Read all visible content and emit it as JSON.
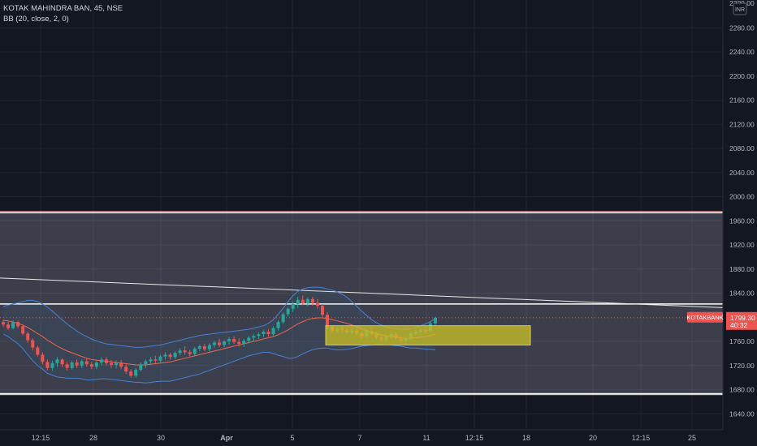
{
  "symbol_line": "KOTAK MAHINDRA BAN, 45, NSE",
  "indicator_line": "BB (20, close, 2, 0)",
  "currency_badge": "INR",
  "price_axis": {
    "top_partial_label": "2320.00",
    "ticks": [
      "2280.00",
      "2240.00",
      "2200.00",
      "2160.00",
      "2120.00",
      "2080.00",
      "2040.00",
      "2000.00",
      "1960.00",
      "1920.00",
      "1880.00",
      "1840.00",
      "1760.00",
      "1720.00",
      "1680.00",
      "1640.00"
    ],
    "last_price": "1799.30",
    "countdown": "40:32",
    "symbol_tag": "KOTAKBANK"
  },
  "time_axis": {
    "ticks": [
      "12:15",
      "28",
      "30",
      "Apr",
      "5",
      "7",
      "11",
      "12:15",
      "18",
      "20",
      "12:15",
      "25"
    ],
    "bold_index": 3
  },
  "colors": {
    "background": "#131722",
    "grid": "#1f2330",
    "up": "#26a69a",
    "down": "#ef5350",
    "bb_basis": "#f0674a",
    "bb_band": "#4a7fd4",
    "zone_fill": "rgba(210,210,225,0.22)",
    "yellow_box": "rgba(200,190,40,0.78)",
    "axis_text": "#b2b5be",
    "last_price_bg": "#ef5350"
  },
  "chart_data": {
    "type": "candlestick",
    "title": "KOTAK MAHINDRA BAN, 45, NSE",
    "interval": "45",
    "exchange": "NSE",
    "y_range": [
      1620,
      2322
    ],
    "x_range_hours": [
      0,
      706
    ],
    "last_price": 1799.3,
    "indicators": [
      {
        "name": "BB (20, close, 2, 0)",
        "bands": [
          "upper",
          "basis",
          "lower"
        ]
      }
    ],
    "annotations": [
      {
        "kind": "price_zone",
        "top": 1975,
        "bottom": 1670
      },
      {
        "kind": "horizontal_line",
        "price": 1822
      },
      {
        "kind": "horizontal_line",
        "price": 1673
      },
      {
        "kind": "trend_line",
        "from_price": 1865,
        "to_price": 1816
      },
      {
        "kind": "rectangle",
        "top": 1786,
        "bottom": 1754
      },
      {
        "kind": "dotted_line",
        "price": 1799.3
      }
    ],
    "ohlc": [
      [
        1792,
        1796,
        1784,
        1788
      ],
      [
        1788,
        1793,
        1779,
        1782
      ],
      [
        1782,
        1795,
        1780,
        1792
      ],
      [
        1792,
        1794,
        1782,
        1785
      ],
      [
        1785,
        1788,
        1770,
        1773
      ],
      [
        1773,
        1776,
        1758,
        1762
      ],
      [
        1762,
        1765,
        1745,
        1750
      ],
      [
        1750,
        1753,
        1735,
        1738
      ],
      [
        1738,
        1742,
        1722,
        1726
      ],
      [
        1726,
        1730,
        1712,
        1716
      ],
      [
        1716,
        1728,
        1711,
        1724
      ],
      [
        1724,
        1734,
        1718,
        1730
      ],
      [
        1730,
        1732,
        1718,
        1722
      ],
      [
        1722,
        1726,
        1712,
        1716
      ],
      [
        1716,
        1728,
        1713,
        1725
      ],
      [
        1725,
        1730,
        1716,
        1720
      ],
      [
        1720,
        1730,
        1716,
        1727
      ],
      [
        1727,
        1732,
        1718,
        1722
      ],
      [
        1722,
        1726,
        1714,
        1718
      ],
      [
        1718,
        1728,
        1714,
        1725
      ],
      [
        1725,
        1734,
        1720,
        1730
      ],
      [
        1730,
        1734,
        1720,
        1724
      ],
      [
        1724,
        1729,
        1716,
        1721
      ],
      [
        1721,
        1728,
        1715,
        1725
      ],
      [
        1725,
        1729,
        1714,
        1718
      ],
      [
        1718,
        1722,
        1706,
        1710
      ],
      [
        1710,
        1714,
        1700,
        1703
      ],
      [
        1703,
        1716,
        1700,
        1713
      ],
      [
        1713,
        1725,
        1710,
        1722
      ],
      [
        1722,
        1730,
        1716,
        1727
      ],
      [
        1727,
        1734,
        1722,
        1730
      ],
      [
        1730,
        1736,
        1724,
        1728
      ],
      [
        1728,
        1738,
        1724,
        1735
      ],
      [
        1735,
        1742,
        1730,
        1738
      ],
      [
        1738,
        1741,
        1730,
        1734
      ],
      [
        1734,
        1744,
        1730,
        1741
      ],
      [
        1741,
        1749,
        1737,
        1745
      ],
      [
        1745,
        1752,
        1738,
        1742
      ],
      [
        1742,
        1746,
        1735,
        1739
      ],
      [
        1739,
        1751,
        1736,
        1748
      ],
      [
        1748,
        1755,
        1744,
        1752
      ],
      [
        1752,
        1756,
        1744,
        1747
      ],
      [
        1747,
        1757,
        1742,
        1754
      ],
      [
        1754,
        1761,
        1749,
        1758
      ],
      [
        1758,
        1764,
        1751,
        1754
      ],
      [
        1754,
        1762,
        1750,
        1760
      ],
      [
        1760,
        1767,
        1755,
        1764
      ],
      [
        1764,
        1768,
        1756,
        1759
      ],
      [
        1759,
        1765,
        1752,
        1756
      ],
      [
        1756,
        1764,
        1751,
        1761
      ],
      [
        1761,
        1769,
        1757,
        1766
      ],
      [
        1766,
        1772,
        1761,
        1769
      ],
      [
        1769,
        1775,
        1764,
        1772
      ],
      [
        1772,
        1779,
        1767,
        1776
      ],
      [
        1776,
        1780,
        1768,
        1772
      ],
      [
        1772,
        1785,
        1769,
        1782
      ],
      [
        1782,
        1795,
        1778,
        1792
      ],
      [
        1792,
        1808,
        1789,
        1805
      ],
      [
        1805,
        1817,
        1801,
        1814
      ],
      [
        1814,
        1826,
        1809,
        1822
      ],
      [
        1822,
        1834,
        1816,
        1829
      ],
      [
        1829,
        1836,
        1820,
        1823
      ],
      [
        1823,
        1833,
        1818,
        1830
      ],
      [
        1830,
        1834,
        1819,
        1824
      ],
      [
        1824,
        1830,
        1814,
        1819
      ],
      [
        1819,
        1822,
        1800,
        1804
      ],
      [
        1804,
        1808,
        1780,
        1784
      ],
      [
        1784,
        1787,
        1773,
        1777
      ],
      [
        1777,
        1784,
        1774,
        1781
      ],
      [
        1781,
        1786,
        1775,
        1779
      ],
      [
        1779,
        1783,
        1772,
        1775
      ],
      [
        1775,
        1781,
        1771,
        1778
      ],
      [
        1778,
        1782,
        1770,
        1773
      ],
      [
        1773,
        1777,
        1764,
        1768
      ],
      [
        1768,
        1780,
        1765,
        1777
      ],
      [
        1777,
        1782,
        1769,
        1772
      ],
      [
        1772,
        1776,
        1764,
        1767
      ],
      [
        1767,
        1772,
        1759,
        1763
      ],
      [
        1763,
        1771,
        1759,
        1768
      ],
      [
        1768,
        1776,
        1764,
        1772
      ],
      [
        1772,
        1776,
        1763,
        1766
      ],
      [
        1766,
        1770,
        1757,
        1761
      ],
      [
        1761,
        1768,
        1756,
        1765
      ],
      [
        1765,
        1776,
        1762,
        1773
      ],
      [
        1773,
        1780,
        1769,
        1776
      ],
      [
        1776,
        1782,
        1770,
        1779
      ],
      [
        1779,
        1784,
        1773,
        1777
      ],
      [
        1777,
        1793,
        1775,
        1790
      ],
      [
        1790,
        1801,
        1787,
        1799
      ]
    ],
    "bb_basis": [
      1795,
      1794,
      1792,
      1790,
      1787,
      1783,
      1778,
      1773,
      1768,
      1762,
      1757,
      1752,
      1748,
      1744,
      1741,
      1738,
      1735,
      1732,
      1730,
      1729,
      1728,
      1727,
      1726,
      1725,
      1724,
      1723,
      1722,
      1721,
      1721,
      1721,
      1722,
      1723,
      1724,
      1725,
      1726,
      1728,
      1730,
      1732,
      1734,
      1736,
      1738,
      1740,
      1742,
      1744,
      1746,
      1748,
      1750,
      1752,
      1754,
      1756,
      1758,
      1760,
      1762,
      1764,
      1766,
      1768,
      1771,
      1775,
      1779,
      1784,
      1789,
      1793,
      1796,
      1798,
      1799,
      1799,
      1798,
      1796,
      1794,
      1792,
      1790,
      1787,
      1784,
      1781,
      1778,
      1775,
      1773,
      1771,
      1769,
      1768,
      1767,
      1766,
      1765,
      1765,
      1766,
      1767,
      1768,
      1770,
      1772
    ],
    "bb_upper": [
      1818,
      1820,
      1822,
      1824,
      1826,
      1828,
      1828,
      1826,
      1822,
      1817,
      1810,
      1803,
      1796,
      1789,
      1783,
      1777,
      1772,
      1768,
      1764,
      1761,
      1758,
      1756,
      1755,
      1754,
      1753,
      1752,
      1751,
      1750,
      1750,
      1751,
      1752,
      1753,
      1754,
      1756,
      1758,
      1760,
      1762,
      1764,
      1766,
      1768,
      1770,
      1771,
      1772,
      1773,
      1774,
      1775,
      1776,
      1777,
      1778,
      1779,
      1780,
      1782,
      1784,
      1786,
      1790,
      1796,
      1805,
      1815,
      1826,
      1836,
      1843,
      1847,
      1849,
      1850,
      1850,
      1849,
      1847,
      1845,
      1842,
      1838,
      1833,
      1826,
      1818,
      1810,
      1803,
      1796,
      1791,
      1787,
      1784,
      1782,
      1781,
      1780,
      1780,
      1781,
      1783,
      1786,
      1789,
      1793,
      1798
    ],
    "bb_lower": [
      1772,
      1768,
      1762,
      1756,
      1748,
      1738,
      1728,
      1720,
      1714,
      1707,
      1704,
      1701,
      1700,
      1699,
      1699,
      1699,
      1698,
      1696,
      1696,
      1697,
      1698,
      1698,
      1697,
      1696,
      1695,
      1694,
      1693,
      1692,
      1692,
      1691,
      1692,
      1693,
      1694,
      1694,
      1694,
      1696,
      1698,
      1700,
      1702,
      1704,
      1706,
      1709,
      1712,
      1715,
      1718,
      1721,
      1724,
      1727,
      1730,
      1733,
      1736,
      1738,
      1740,
      1742,
      1742,
      1740,
      1737,
      1735,
      1732,
      1732,
      1735,
      1739,
      1743,
      1746,
      1748,
      1749,
      1749,
      1747,
      1746,
      1746,
      1747,
      1748,
      1750,
      1752,
      1753,
      1754,
      1755,
      1755,
      1754,
      1754,
      1753,
      1752,
      1750,
      1749,
      1749,
      1748,
      1747,
      1747,
      1746
    ]
  }
}
